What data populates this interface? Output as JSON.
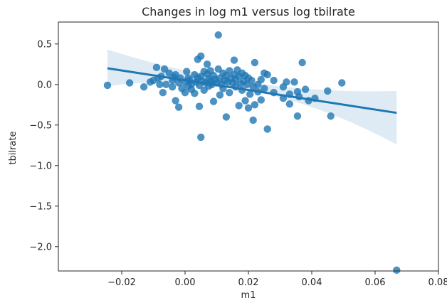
{
  "chart_data": {
    "type": "scatter",
    "title": "Changes in log m1 versus log tbilrate",
    "xlabel": "m1",
    "ylabel": "tbilrate",
    "xlim": [
      -0.04,
      0.08
    ],
    "ylim": [
      -2.3,
      0.77
    ],
    "xticks": [
      -0.02,
      0.0,
      0.02,
      0.04,
      0.06,
      0.08
    ],
    "xtick_labels": [
      "−0.02",
      "0.00",
      "0.02",
      "0.04",
      "0.06",
      "0.08"
    ],
    "yticks": [
      0.5,
      0.0,
      -0.5,
      -1.0,
      -1.5,
      -2.0
    ],
    "ytick_labels": [
      "0.5",
      "0.0",
      "−0.5",
      "−1.0",
      "−1.5",
      "−2.0"
    ],
    "grid": false,
    "colors": {
      "points": "#1f77b4",
      "line": "#1f77b4",
      "band": "#1f77b4"
    },
    "regression": {
      "x": [
        -0.0245,
        0.0668
      ],
      "y": [
        0.2,
        -0.35
      ],
      "ci_upper": [
        0.43,
        -0.08
      ],
      "ci_lower": [
        -0.02,
        -0.74
      ],
      "ci_upper_mid": [
        0.02,
        0.005
      ],
      "ci_lower_mid": [
        0.02,
        -0.08
      ]
    },
    "points": [
      [
        -0.0245,
        -0.01
      ],
      [
        -0.0175,
        0.02
      ],
      [
        -0.013,
        -0.03
      ],
      [
        -0.011,
        0.03
      ],
      [
        -0.01,
        0.05
      ],
      [
        -0.009,
        0.21
      ],
      [
        -0.0085,
        0.08
      ],
      [
        -0.008,
        0.0
      ],
      [
        -0.0075,
        0.1
      ],
      [
        -0.007,
        -0.1
      ],
      [
        -0.0065,
        0.19
      ],
      [
        -0.006,
        0.0
      ],
      [
        -0.005,
        0.14
      ],
      [
        -0.004,
        0.05
      ],
      [
        -0.004,
        -0.03
      ],
      [
        -0.0035,
        0.09
      ],
      [
        -0.003,
        0.12
      ],
      [
        -0.003,
        -0.2
      ],
      [
        -0.002,
        -0.28
      ],
      [
        -0.002,
        0.02
      ],
      [
        -0.0015,
        0.08
      ],
      [
        -0.001,
        -0.05
      ],
      [
        0.0,
        0.03
      ],
      [
        0.0,
        -0.1
      ],
      [
        0.0005,
        0.16
      ],
      [
        0.001,
        -0.02
      ],
      [
        0.001,
        0.08
      ],
      [
        0.0015,
        0.05
      ],
      [
        0.002,
        -0.06
      ],
      [
        0.002,
        0.0
      ],
      [
        0.003,
        0.12
      ],
      [
        0.003,
        -0.11
      ],
      [
        0.0035,
        0.03
      ],
      [
        0.004,
        0.31
      ],
      [
        0.004,
        0.08
      ],
      [
        0.0045,
        -0.01
      ],
      [
        0.0045,
        -0.27
      ],
      [
        0.005,
        0.1
      ],
      [
        0.005,
        -0.65
      ],
      [
        0.005,
        0.35
      ],
      [
        0.0055,
        0.04
      ],
      [
        0.006,
        0.16
      ],
      [
        0.006,
        -0.07
      ],
      [
        0.0065,
        0.02
      ],
      [
        0.007,
        0.25
      ],
      [
        0.007,
        0.13
      ],
      [
        0.0075,
        0.07
      ],
      [
        0.0075,
        -0.02
      ],
      [
        0.008,
        0.17
      ],
      [
        0.008,
        0.04
      ],
      [
        0.0085,
        0.0
      ],
      [
        0.009,
        0.11
      ],
      [
        0.009,
        -0.21
      ],
      [
        0.0095,
        0.06
      ],
      [
        0.01,
        0.02
      ],
      [
        0.0105,
        0.61
      ],
      [
        0.0105,
        0.19
      ],
      [
        0.011,
        -0.13
      ],
      [
        0.011,
        0.08
      ],
      [
        0.0115,
        0.0
      ],
      [
        0.012,
        0.14
      ],
      [
        0.012,
        -0.05
      ],
      [
        0.0125,
        0.05
      ],
      [
        0.013,
        0.11
      ],
      [
        0.013,
        -0.4
      ],
      [
        0.0135,
        0.03
      ],
      [
        0.014,
        0.17
      ],
      [
        0.014,
        -0.1
      ],
      [
        0.0145,
        0.08
      ],
      [
        0.015,
        0.02
      ],
      [
        0.0155,
        0.3
      ],
      [
        0.0155,
        0.12
      ],
      [
        0.016,
        -0.03
      ],
      [
        0.016,
        0.06
      ],
      [
        0.0165,
        0.18
      ],
      [
        0.017,
        -0.26
      ],
      [
        0.017,
        0.1
      ],
      [
        0.0175,
        0.01
      ],
      [
        0.018,
        0.14
      ],
      [
        0.018,
        -0.07
      ],
      [
        0.0185,
        0.04
      ],
      [
        0.019,
        0.11
      ],
      [
        0.019,
        -0.2
      ],
      [
        0.0195,
        0.0
      ],
      [
        0.02,
        -0.29
      ],
      [
        0.02,
        0.08
      ],
      [
        0.0205,
        -0.12
      ],
      [
        0.021,
        0.05
      ],
      [
        0.0215,
        -0.44
      ],
      [
        0.0215,
        -0.03
      ],
      [
        0.022,
        0.27
      ],
      [
        0.022,
        -0.25
      ],
      [
        0.023,
        0.0
      ],
      [
        0.023,
        -0.09
      ],
      [
        0.024,
        -0.19
      ],
      [
        0.024,
        0.06
      ],
      [
        0.025,
        0.14
      ],
      [
        0.025,
        -0.05
      ],
      [
        0.026,
        -0.55
      ],
      [
        0.026,
        0.12
      ],
      [
        0.028,
        0.05
      ],
      [
        0.028,
        -0.1
      ],
      [
        0.031,
        -0.03
      ],
      [
        0.031,
        -0.17
      ],
      [
        0.032,
        0.03
      ],
      [
        0.033,
        -0.24
      ],
      [
        0.033,
        -0.12
      ],
      [
        0.0345,
        0.03
      ],
      [
        0.0355,
        -0.09
      ],
      [
        0.0355,
        -0.39
      ],
      [
        0.036,
        -0.15
      ],
      [
        0.037,
        0.27
      ],
      [
        0.038,
        -0.06
      ],
      [
        0.039,
        -0.2
      ],
      [
        0.041,
        -0.17
      ],
      [
        0.045,
        -0.08
      ],
      [
        0.046,
        -0.39
      ],
      [
        0.0495,
        0.02
      ],
      [
        0.0668,
        -2.29
      ]
    ]
  }
}
